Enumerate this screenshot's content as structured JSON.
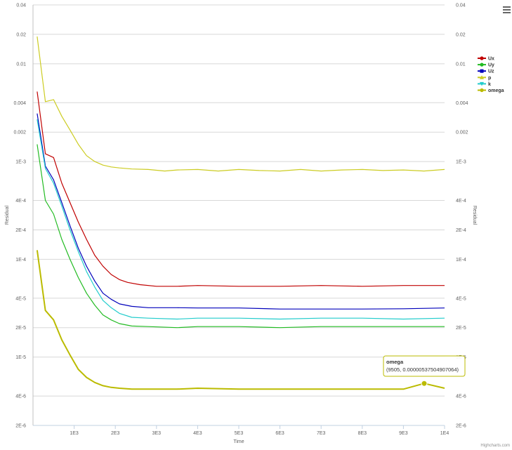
{
  "chart_data": {
    "type": "line",
    "xlabel": "Time",
    "ylabel": "Residual",
    "y_scale": "log",
    "xlim": [
      0,
      10000
    ],
    "ylim": [
      2e-06,
      0.04
    ],
    "x_ticks": [
      1000,
      2000,
      3000,
      4000,
      5000,
      6000,
      7000,
      8000,
      9000,
      10000
    ],
    "x_tick_labels": [
      "1E3",
      "2E3",
      "3E3",
      "4E3",
      "5E3",
      "6E3",
      "7E3",
      "8E3",
      "9E3",
      "1E4"
    ],
    "y_ticks": [
      2e-06,
      4e-06,
      1e-05,
      2e-05,
      4e-05,
      0.0001,
      0.0002,
      0.0004,
      0.001,
      0.002,
      0.004,
      0.01,
      0.02,
      0.04
    ],
    "y_tick_labels": [
      "2E-6",
      "4E-6",
      "1E-5",
      "2E-5",
      "4E-5",
      "1E-4",
      "2E-4",
      "4E-4",
      "1E-3",
      "0.002",
      "0.004",
      "0.01",
      "0.02",
      "0.04"
    ],
    "grid": true,
    "legend_position": "right",
    "credit": "Highcharts.com",
    "series": [
      {
        "name": "Ux",
        "color": "#c00000",
        "marker": "circle",
        "points": [
          [
            100,
            0.0052
          ],
          [
            300,
            0.0012
          ],
          [
            500,
            0.0011
          ],
          [
            700,
            0.0006
          ],
          [
            900,
            0.00038
          ],
          [
            1100,
            0.00024
          ],
          [
            1300,
            0.00016
          ],
          [
            1500,
            0.00011
          ],
          [
            1700,
            8.5e-05
          ],
          [
            1900,
            7e-05
          ],
          [
            2100,
            6.2e-05
          ],
          [
            2300,
            5.8e-05
          ],
          [
            2600,
            5.5e-05
          ],
          [
            3000,
            5.3e-05
          ],
          [
            3500,
            5.3e-05
          ],
          [
            4000,
            5.4e-05
          ],
          [
            5000,
            5.3e-05
          ],
          [
            6000,
            5.3e-05
          ],
          [
            7000,
            5.4e-05
          ],
          [
            8000,
            5.3e-05
          ],
          [
            9000,
            5.4e-05
          ],
          [
            10000,
            5.4e-05
          ]
        ]
      },
      {
        "name": "Uy",
        "color": "#22bb22",
        "marker": "circle",
        "points": [
          [
            100,
            0.0015
          ],
          [
            300,
            0.0004
          ],
          [
            500,
            0.00029
          ],
          [
            700,
            0.00016
          ],
          [
            900,
            0.0001
          ],
          [
            1100,
            6.5e-05
          ],
          [
            1300,
            4.5e-05
          ],
          [
            1500,
            3.4e-05
          ],
          [
            1700,
            2.7e-05
          ],
          [
            1900,
            2.4e-05
          ],
          [
            2100,
            2.2e-05
          ],
          [
            2400,
            2.08e-05
          ],
          [
            2800,
            2.05e-05
          ],
          [
            3500,
            2e-05
          ],
          [
            4000,
            2.05e-05
          ],
          [
            5000,
            2.05e-05
          ],
          [
            6000,
            2e-05
          ],
          [
            7000,
            2.05e-05
          ],
          [
            8000,
            2.05e-05
          ],
          [
            9000,
            2.05e-05
          ],
          [
            10000,
            2.05e-05
          ]
        ]
      },
      {
        "name": "Uz",
        "color": "#0000bb",
        "marker": "square",
        "points": [
          [
            100,
            0.0031
          ],
          [
            300,
            0.0009
          ],
          [
            500,
            0.00065
          ],
          [
            700,
            0.00038
          ],
          [
            900,
            0.00022
          ],
          [
            1100,
            0.00013
          ],
          [
            1300,
            8.5e-05
          ],
          [
            1500,
            6e-05
          ],
          [
            1700,
            4.5e-05
          ],
          [
            1900,
            3.9e-05
          ],
          [
            2100,
            3.5e-05
          ],
          [
            2400,
            3.3e-05
          ],
          [
            2800,
            3.2e-05
          ],
          [
            3500,
            3.2e-05
          ],
          [
            4000,
            3.18e-05
          ],
          [
            5000,
            3.18e-05
          ],
          [
            6000,
            3.1e-05
          ],
          [
            7000,
            3.1e-05
          ],
          [
            8000,
            3.1e-05
          ],
          [
            9000,
            3.12e-05
          ],
          [
            10000,
            3.18e-05
          ]
        ]
      },
      {
        "name": "p",
        "color": "#cccc22",
        "marker": "triangle",
        "points": [
          [
            100,
            0.019
          ],
          [
            300,
            0.0041
          ],
          [
            500,
            0.0043
          ],
          [
            700,
            0.0029
          ],
          [
            900,
            0.0021
          ],
          [
            1100,
            0.0015
          ],
          [
            1300,
            0.00115
          ],
          [
            1500,
            0.001
          ],
          [
            1700,
            0.00092
          ],
          [
            1900,
            0.00088
          ],
          [
            2100,
            0.00086
          ],
          [
            2400,
            0.00084
          ],
          [
            2800,
            0.00083
          ],
          [
            3200,
            0.0008
          ],
          [
            3500,
            0.00082
          ],
          [
            4000,
            0.00083
          ],
          [
            4500,
            0.0008
          ],
          [
            5000,
            0.00083
          ],
          [
            5500,
            0.00081
          ],
          [
            6000,
            0.0008
          ],
          [
            6500,
            0.00083
          ],
          [
            7000,
            0.0008
          ],
          [
            7500,
            0.00082
          ],
          [
            8000,
            0.00083
          ],
          [
            8500,
            0.00081
          ],
          [
            9000,
            0.00082
          ],
          [
            9500,
            0.0008
          ],
          [
            10000,
            0.00083
          ]
        ]
      },
      {
        "name": "k",
        "color": "#22cccc",
        "marker": "triangle-down",
        "points": [
          [
            100,
            0.0027
          ],
          [
            300,
            0.00085
          ],
          [
            500,
            0.0006
          ],
          [
            700,
            0.00035
          ],
          [
            900,
            0.0002
          ],
          [
            1100,
            0.00012
          ],
          [
            1300,
            7.5e-05
          ],
          [
            1500,
            5.2e-05
          ],
          [
            1700,
            3.8e-05
          ],
          [
            1900,
            3.2e-05
          ],
          [
            2100,
            2.8e-05
          ],
          [
            2400,
            2.55e-05
          ],
          [
            2800,
            2.5e-05
          ],
          [
            3500,
            2.45e-05
          ],
          [
            4000,
            2.5e-05
          ],
          [
            5000,
            2.5e-05
          ],
          [
            6000,
            2.45e-05
          ],
          [
            7000,
            2.5e-05
          ],
          [
            8000,
            2.5e-05
          ],
          [
            9000,
            2.45e-05
          ],
          [
            10000,
            2.5e-05
          ]
        ]
      },
      {
        "name": "omega",
        "color": "#bbbb00",
        "marker": "circle",
        "points": [
          [
            100,
            0.000124
          ],
          [
            300,
            3e-05
          ],
          [
            500,
            2.4e-05
          ],
          [
            700,
            1.5e-05
          ],
          [
            900,
            1.05e-05
          ],
          [
            1100,
            7.5e-06
          ],
          [
            1300,
            6.2e-06
          ],
          [
            1500,
            5.5e-06
          ],
          [
            1700,
            5.1e-06
          ],
          [
            1900,
            4.9e-06
          ],
          [
            2100,
            4.8e-06
          ],
          [
            2400,
            4.7e-06
          ],
          [
            2800,
            4.7e-06
          ],
          [
            3500,
            4.7e-06
          ],
          [
            4000,
            4.8e-06
          ],
          [
            5000,
            4.7e-06
          ],
          [
            6000,
            4.7e-06
          ],
          [
            7000,
            4.7e-06
          ],
          [
            8000,
            4.7e-06
          ],
          [
            9000,
            4.7e-06
          ],
          [
            9505,
            5.3750490706e-06
          ],
          [
            10000,
            4.8e-06
          ]
        ]
      }
    ],
    "tooltip": {
      "series": "omega",
      "text": "(9505, 0.00000537504907064)",
      "x": 9505,
      "y": 5.3750490706e-06
    }
  }
}
